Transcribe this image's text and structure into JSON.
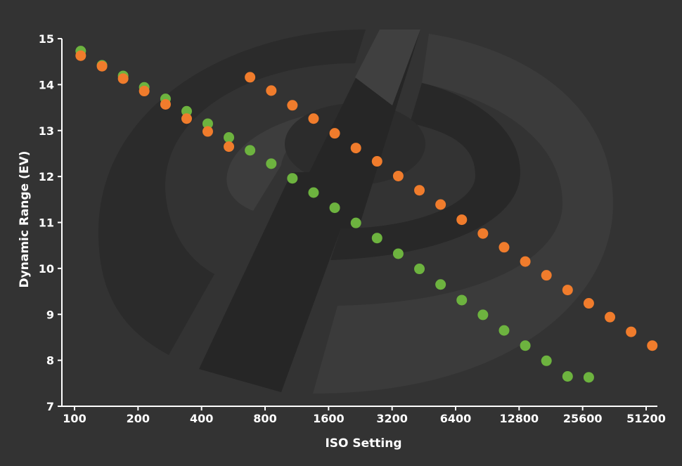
{
  "chart_data": {
    "type": "scatter",
    "title": "",
    "xlabel": "ISO Setting",
    "ylabel": "Dynamic Range (EV)",
    "x_scale": "log2",
    "xlim": [
      100,
      51200
    ],
    "ylim": [
      7,
      15
    ],
    "x_ticks": [
      100,
      200,
      400,
      800,
      1600,
      3200,
      6400,
      12800,
      25600,
      51200
    ],
    "x_tick_labels": [
      "100",
      "200",
      "400",
      "800",
      "1600",
      "3200",
      "6400",
      "12800",
      "25600",
      "51200"
    ],
    "y_ticks": [
      7,
      8,
      9,
      10,
      11,
      12,
      13,
      14,
      15
    ],
    "y_tick_labels": [
      "7",
      "8",
      "9",
      "10",
      "11",
      "12",
      "13",
      "14",
      "15"
    ],
    "grid": false,
    "legend": "none",
    "background_color": "#333333",
    "series": [
      {
        "color": "#6db33f",
        "points": [
          {
            "x": 107,
            "y": 14.73
          },
          {
            "x": 135,
            "y": 14.42
          },
          {
            "x": 170,
            "y": 14.19
          },
          {
            "x": 214,
            "y": 13.94
          },
          {
            "x": 270,
            "y": 13.69
          },
          {
            "x": 340,
            "y": 13.42
          },
          {
            "x": 428,
            "y": 13.15
          },
          {
            "x": 539,
            "y": 12.85
          },
          {
            "x": 679,
            "y": 12.57
          },
          {
            "x": 856,
            "y": 12.28
          },
          {
            "x": 1078,
            "y": 11.96
          },
          {
            "x": 1358,
            "y": 11.65
          },
          {
            "x": 1711,
            "y": 11.32
          },
          {
            "x": 2156,
            "y": 10.99
          },
          {
            "x": 2716,
            "y": 10.66
          },
          {
            "x": 3422,
            "y": 10.32
          },
          {
            "x": 4312,
            "y": 9.99
          },
          {
            "x": 5433,
            "y": 9.65
          },
          {
            "x": 6845,
            "y": 9.31
          },
          {
            "x": 8623,
            "y": 8.99
          },
          {
            "x": 10865,
            "y": 8.65
          },
          {
            "x": 13689,
            "y": 8.32
          },
          {
            "x": 17246,
            "y": 7.99
          },
          {
            "x": 21729,
            "y": 7.65
          },
          {
            "x": 27377,
            "y": 7.63
          }
        ]
      },
      {
        "color": "#f07c2c",
        "points": [
          {
            "x": 107,
            "y": 14.63
          },
          {
            "x": 135,
            "y": 14.4
          },
          {
            "x": 170,
            "y": 14.13
          },
          {
            "x": 214,
            "y": 13.86
          },
          {
            "x": 270,
            "y": 13.57
          },
          {
            "x": 340,
            "y": 13.26
          },
          {
            "x": 428,
            "y": 12.98
          },
          {
            "x": 539,
            "y": 12.65
          },
          {
            "x": 679,
            "y": 14.16
          },
          {
            "x": 856,
            "y": 13.87
          },
          {
            "x": 1078,
            "y": 13.55
          },
          {
            "x": 1358,
            "y": 13.26
          },
          {
            "x": 1711,
            "y": 12.94
          },
          {
            "x": 2156,
            "y": 12.62
          },
          {
            "x": 2716,
            "y": 12.33
          },
          {
            "x": 3422,
            "y": 12.01
          },
          {
            "x": 4312,
            "y": 11.7
          },
          {
            "x": 5433,
            "y": 11.39
          },
          {
            "x": 6845,
            "y": 11.06
          },
          {
            "x": 8623,
            "y": 10.76
          },
          {
            "x": 10865,
            "y": 10.46
          },
          {
            "x": 13689,
            "y": 10.15
          },
          {
            "x": 17246,
            "y": 9.85
          },
          {
            "x": 21729,
            "y": 9.53
          },
          {
            "x": 27377,
            "y": 9.24
          },
          {
            "x": 34493,
            "y": 8.94
          },
          {
            "x": 43458,
            "y": 8.62
          },
          {
            "x": 54751,
            "y": 8.32
          }
        ]
      }
    ]
  },
  "watermark": {
    "name": "camera-logo-watermark",
    "ring_color": "#2b2b2b",
    "bar_color": "#404040"
  }
}
